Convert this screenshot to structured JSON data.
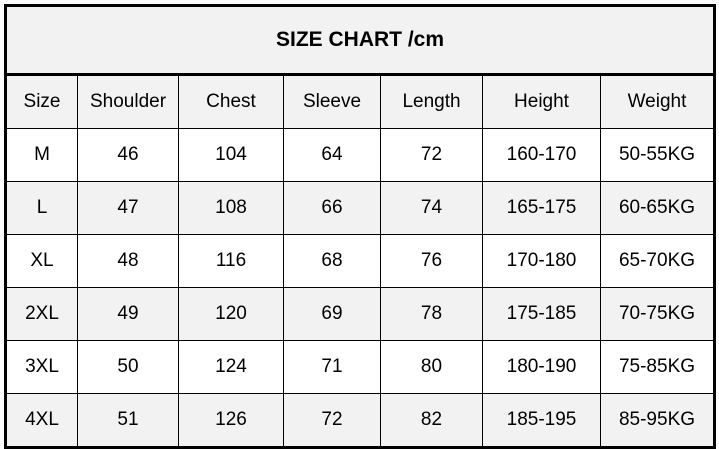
{
  "title": "SIZE CHART /cm",
  "columns": [
    "Size",
    "Shoulder",
    "Chest",
    "Sleeve",
    "Length",
    "Height",
    "Weight"
  ],
  "rows": [
    [
      "M",
      "46",
      "104",
      "64",
      "72",
      "160-170",
      "50-55KG"
    ],
    [
      "L",
      "47",
      "108",
      "66",
      "74",
      "165-175",
      "60-65KG"
    ],
    [
      "XL",
      "48",
      "116",
      "68",
      "76",
      "170-180",
      "65-70KG"
    ],
    [
      "2XL",
      "49",
      "120",
      "69",
      "78",
      "175-185",
      "70-75KG"
    ],
    [
      "3XL",
      "50",
      "124",
      "71",
      "80",
      "180-190",
      "75-85KG"
    ],
    [
      "4XL",
      "51",
      "126",
      "72",
      "82",
      "185-195",
      "85-95KG"
    ]
  ],
  "colors": {
    "header_bg": "#f2f2f2",
    "alt_row_bg": "#f2f2f2",
    "border": "#000000"
  }
}
